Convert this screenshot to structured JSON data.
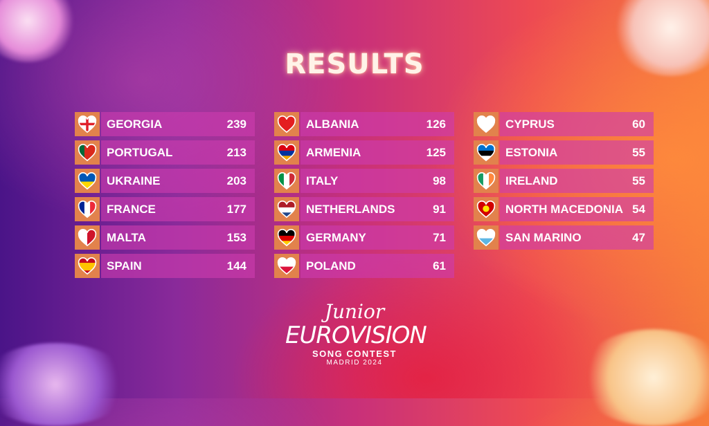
{
  "title": "RESULTS",
  "columns": [
    [
      {
        "country": "GEORGIA",
        "points": "239",
        "flag": {
          "type": "cross",
          "colors": [
            "#ffffff",
            "#e0202a"
          ]
        }
      },
      {
        "country": "PORTUGAL",
        "points": "213",
        "flag": {
          "type": "v",
          "colors": [
            "#046a38",
            "#da291c",
            "#da291c"
          ]
        }
      },
      {
        "country": "UKRAINE",
        "points": "203",
        "flag": {
          "type": "h",
          "colors": [
            "#0057b7",
            "#ffd700"
          ]
        }
      },
      {
        "country": "FRANCE",
        "points": "177",
        "flag": {
          "type": "v",
          "colors": [
            "#002395",
            "#ffffff",
            "#ed2939"
          ]
        }
      },
      {
        "country": "MALTA",
        "points": "153",
        "flag": {
          "type": "v",
          "colors": [
            "#ffffff",
            "#cf142b"
          ]
        }
      },
      {
        "country": "SPAIN",
        "points": "144",
        "flag": {
          "type": "h",
          "colors": [
            "#c60b1e",
            "#ffc400",
            "#ffc400",
            "#c60b1e"
          ]
        }
      }
    ],
    [
      {
        "country": "ALBANIA",
        "points": "126",
        "flag": {
          "type": "h",
          "colors": [
            "#e41e20"
          ]
        }
      },
      {
        "country": "ARMENIA",
        "points": "125",
        "flag": {
          "type": "h",
          "colors": [
            "#d90012",
            "#0033a0",
            "#f2a800"
          ]
        }
      },
      {
        "country": "ITALY",
        "points": "98",
        "flag": {
          "type": "v",
          "colors": [
            "#009246",
            "#ffffff",
            "#ce2b37"
          ]
        }
      },
      {
        "country": "NETHERLANDS",
        "points": "91",
        "flag": {
          "type": "h",
          "colors": [
            "#ae1c28",
            "#ffffff",
            "#21468b"
          ]
        }
      },
      {
        "country": "GERMANY",
        "points": "71",
        "flag": {
          "type": "h",
          "colors": [
            "#000000",
            "#dd0000",
            "#ffce00"
          ]
        }
      },
      {
        "country": "POLAND",
        "points": "61",
        "flag": {
          "type": "h",
          "colors": [
            "#ffffff",
            "#dc143c"
          ]
        }
      }
    ],
    [
      {
        "country": "CYPRUS",
        "points": "60",
        "flag": {
          "type": "h",
          "colors": [
            "#ffffff"
          ]
        }
      },
      {
        "country": "ESTONIA",
        "points": "55",
        "flag": {
          "type": "h",
          "colors": [
            "#0072ce",
            "#000000",
            "#ffffff"
          ]
        }
      },
      {
        "country": "IRELAND",
        "points": "55",
        "flag": {
          "type": "v",
          "colors": [
            "#169b62",
            "#ffffff",
            "#ff883e"
          ]
        }
      },
      {
        "country": "NORTH MACEDONIA",
        "points": "54",
        "flag": {
          "type": "sun",
          "colors": [
            "#d20000",
            "#ffe600"
          ]
        }
      },
      {
        "country": "SAN MARINO",
        "points": "47",
        "flag": {
          "type": "h",
          "colors": [
            "#ffffff",
            "#5eb6e4"
          ]
        }
      }
    ]
  ],
  "logo": {
    "line1": "Junior",
    "line2": "EUROVISION",
    "line3": "SONG CONTEST",
    "line4": "MADRID 2024"
  },
  "colors": {
    "row_bg": "#cd3caf",
    "flag_box": "#e2824c"
  }
}
